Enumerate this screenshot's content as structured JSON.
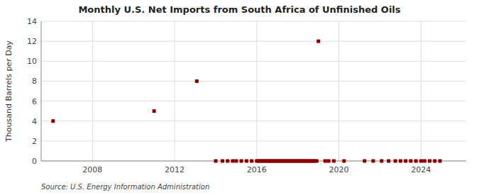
{
  "chart_data": {
    "type": "scatter",
    "title": "Monthly U.S. Net Imports from South Africa of Unfinished Oils",
    "ylabel": "Thousand Barrels per Day",
    "source": "Source: U.S. Energy Information Administration",
    "color": "#8b0000",
    "marker": "square",
    "grid": true,
    "xlim": [
      2005.5,
      2026.2
    ],
    "xticks": [
      2008,
      2012,
      2016,
      2020,
      2024
    ],
    "ylim": [
      0,
      14
    ],
    "yticks": [
      0,
      2,
      4,
      6,
      8,
      10,
      12,
      14
    ],
    "x": [
      2006.08,
      2011.0,
      2013.08,
      2014.0,
      2014.33,
      2014.58,
      2014.83,
      2015.0,
      2015.25,
      2015.5,
      2015.75,
      2016.0,
      2016.08,
      2016.17,
      2016.25,
      2016.33,
      2016.42,
      2016.5,
      2016.58,
      2016.67,
      2016.75,
      2016.83,
      2016.92,
      2017.0,
      2017.08,
      2017.17,
      2017.25,
      2017.33,
      2017.42,
      2017.5,
      2017.58,
      2017.67,
      2017.75,
      2017.83,
      2017.92,
      2018.0,
      2018.08,
      2018.17,
      2018.25,
      2018.33,
      2018.42,
      2018.5,
      2018.58,
      2018.67,
      2018.75,
      2018.83,
      2018.92,
      2019.0,
      2019.33,
      2019.5,
      2019.75,
      2020.25,
      2021.25,
      2021.67,
      2022.08,
      2022.42,
      2022.75,
      2023.0,
      2023.25,
      2023.5,
      2023.75,
      2024.0,
      2024.17,
      2024.42,
      2024.67,
      2024.92
    ],
    "values": [
      4.0,
      5.0,
      8.0,
      0.0,
      0.0,
      0.0,
      0.0,
      0.0,
      0.0,
      0.0,
      0.0,
      0.0,
      0.0,
      0.0,
      0.0,
      0.0,
      0.0,
      0.0,
      0.0,
      0.0,
      0.0,
      0.0,
      0.0,
      0.0,
      0.0,
      0.0,
      0.0,
      0.0,
      0.0,
      0.0,
      0.0,
      0.0,
      0.0,
      0.0,
      0.0,
      0.0,
      0.0,
      0.0,
      0.0,
      0.0,
      0.0,
      0.0,
      0.0,
      0.0,
      0.0,
      0.0,
      0.0,
      12.0,
      0.0,
      0.0,
      0.0,
      0.0,
      0.0,
      0.0,
      0.0,
      0.0,
      0.0,
      0.0,
      0.0,
      0.0,
      0.0,
      0.0,
      0.0,
      0.0,
      0.0,
      0.0
    ]
  }
}
